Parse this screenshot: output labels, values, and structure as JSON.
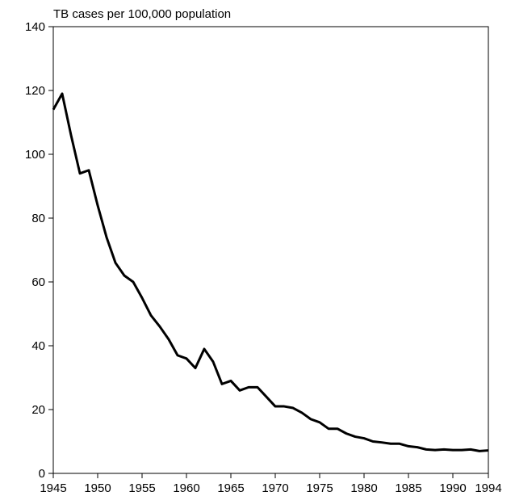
{
  "chart_data": {
    "type": "line",
    "y_axis_label": "TB cases per 100,000 population",
    "x": [
      1945,
      1946,
      1947,
      1948,
      1949,
      1950,
      1951,
      1952,
      1953,
      1954,
      1955,
      1956,
      1957,
      1958,
      1959,
      1960,
      1961,
      1962,
      1963,
      1964,
      1965,
      1966,
      1967,
      1968,
      1969,
      1970,
      1971,
      1972,
      1973,
      1974,
      1975,
      1976,
      1977,
      1978,
      1979,
      1980,
      1981,
      1982,
      1983,
      1984,
      1985,
      1986,
      1987,
      1988,
      1989,
      1990,
      1991,
      1992,
      1993,
      1994
    ],
    "series": [
      {
        "color": "#000000",
        "values": [
          114,
          119,
          106,
          94,
          95,
          84,
          74,
          66,
          62,
          60,
          55,
          49.5,
          46,
          42,
          37,
          36,
          33,
          39,
          35,
          28,
          29,
          26,
          27,
          27,
          24,
          21,
          21,
          20.5,
          19,
          17,
          16,
          14,
          14,
          12.5,
          11.5,
          11,
          10,
          9.7,
          9.3,
          9.3,
          8.5,
          8.2,
          7.5,
          7.3,
          7.5,
          7.3,
          7.3,
          7.5,
          7,
          7.2
        ]
      }
    ],
    "xlim": [
      1945,
      1994
    ],
    "xticks": [
      1945,
      1950,
      1955,
      1960,
      1965,
      1970,
      1975,
      1980,
      1985,
      1990,
      1994
    ],
    "ylim": [
      0,
      140
    ],
    "yticks": [
      0,
      20,
      40,
      60,
      80,
      100,
      120,
      140
    ],
    "grid": false
  }
}
